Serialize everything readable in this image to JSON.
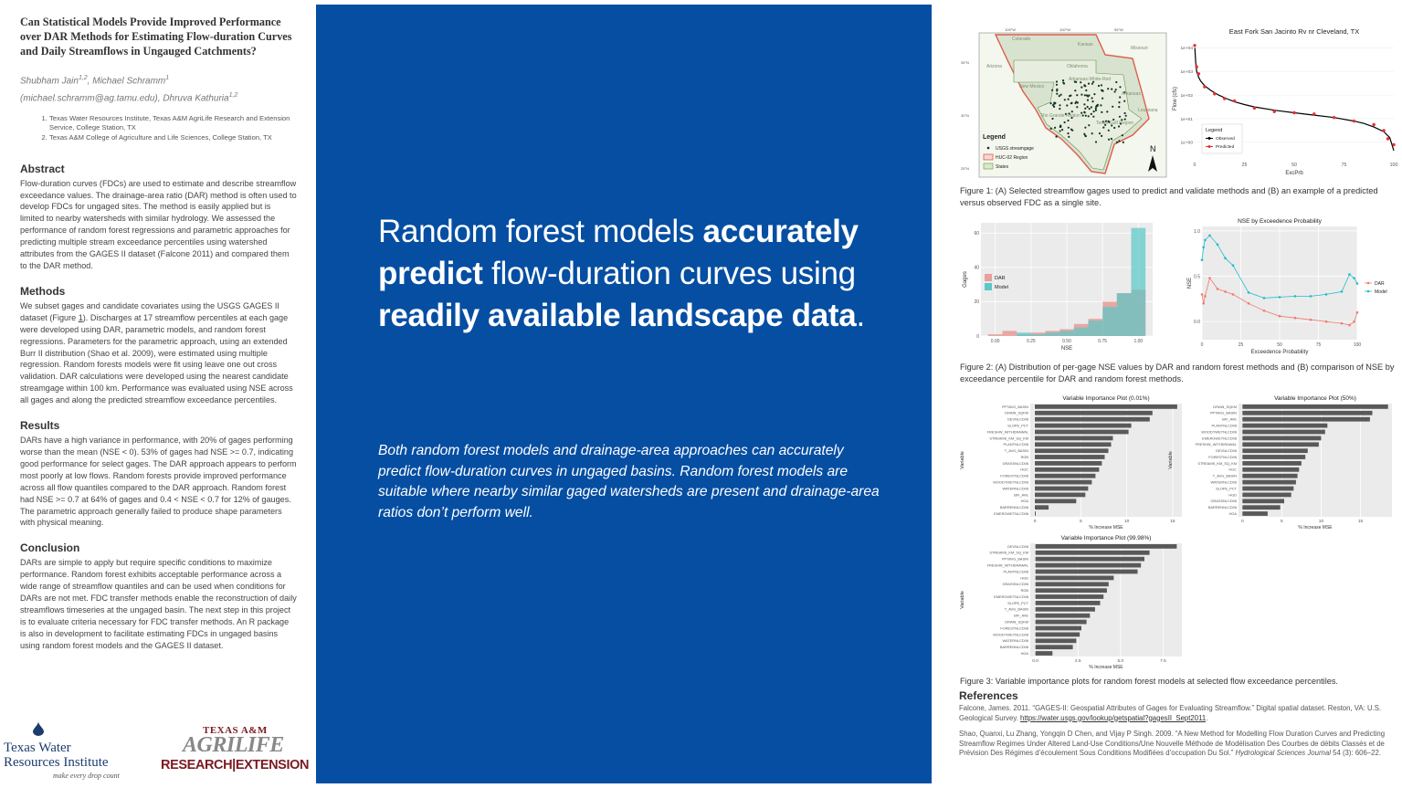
{
  "poster": {
    "title": "Can Statistical Models Provide Improved Performance over DAR Methods for Estimating Flow-duration Curves and Daily Streamflows in Ungauged Catchments?",
    "authors": [
      {
        "name": "Shubham Jain",
        "sup": "1,2",
        "sep": ", "
      },
      {
        "name": "Michael Schramm",
        "sup": "1",
        "sep": " "
      },
      {
        "name": "(michael.schramm@ag.tamu.edu), Dhruva Kathuria",
        "sup": "1,2",
        "sep": ""
      }
    ],
    "affiliations": [
      "Texas Water Resources Institute, Texas A&M AgriLife Research and Extension Service, College Station, TX",
      "Texas A&M College of Agriculture and Life Sciences, College Station, TX"
    ]
  },
  "sections": {
    "abstract": {
      "heading": "Abstract",
      "text": "Flow-duration curves (FDCs) are used to estimate and describe streamflow exceedance values. The drainage-area ratio (DAR) method is often used to develop FDCs for ungaged sites. The method is easily applied but is limited to nearby watersheds with similar hydrology. We assessed the performance of random forest regressions and parametric approaches for predicting multiple stream exceedance percentiles using watershed attributes from the GAGES II dataset (Falcone 2011) and compared them to the DAR method."
    },
    "methods": {
      "heading": "Methods",
      "text_a": "We subset gages and candidate covariates using the USGS GAGES II dataset (Figure ",
      "fig_link": "1",
      "text_b": "). Discharges at 17 streamflow percentiles at each gage were developed using DAR, parametric models, and random forest regressions. Parameters for the parametric approach, using an extended Burr II distribution (Shao et al. 2009), were estimated using multiple regression. Random forests models were fit using leave one out cross validation. DAR calculations were developed using the nearest candidate streamgage within 100 km. Performance was evaluated using NSE across all gages and along the predicted streamflow exceedance percentiles."
    },
    "results": {
      "heading": "Results",
      "text": "DARs have a high variance in performance, with 20% of gages performing worse than the mean (NSE < 0). 53% of gages had NSE >= 0.7, indicating good performance for select gages. The DAR approach appears to perform most poorly at low flows. Random forests provide improved performance across all flow quantiles compared to the DAR approach. Random forest had NSE >= 0.7 at 64% of gages and 0.4 < NSE < 0.7 for 12% of gauges. The parametric approach generally failed to produce shape parameters with physical meaning."
    },
    "conclusion": {
      "heading": "Conclusion",
      "text": "DARs are simple to apply but require specific conditions to maximize performance. Random forest exhibits acceptable performance across a wide range of streamflow quantiles and can be used when conditions for DARs are not met. FDC transfer methods enable the reconstruction of daily streamflows timeseries at the ungaged basin. The next step in this project is to evaluate criteria necessary for FDC transfer methods. An R package is also in development to facilitate estimating FDCs in ungaged basins using random forest models and the GAGES II dataset."
    }
  },
  "logos": {
    "twri_line1": "Texas Water",
    "twri_line2": "Resources Institute",
    "twri_tagline": "make every drop count",
    "agrilife_top": "TEXAS A&M",
    "agrilife_mid": "AGRILIFE",
    "agrilife_bottom": "RESEARCH|EXTENSION"
  },
  "center": {
    "headline": [
      {
        "t": "Random forest models ",
        "b": false
      },
      {
        "t": "accurately predict",
        "b": true
      },
      {
        "t": " flow-duration curves using ",
        "b": false
      },
      {
        "t": "readily available landscape data",
        "b": true
      },
      {
        "t": ".",
        "b": false
      }
    ],
    "summary": "Both random forest models and drainage-area approaches can accurately predict flow-duration curves in ungaged basins. Random forest models are suitable where nearby similar gaged watersheds are present and drainage-area ratios don’t perform well."
  },
  "figures": {
    "map": {
      "lon_labels": [
        "105°W",
        "100°W",
        "95°W"
      ],
      "lat_labels": [
        "35°N",
        "30°N",
        "25°N"
      ],
      "regions": [
        "Colorado",
        "Kansas",
        "Missouri",
        "Arizona",
        "New Mexico",
        "Oklahoma",
        "Arkansas",
        "Arkansas-White-Red",
        "Rio Grande Region",
        "Texas-Gulf Region",
        "Louisiana"
      ],
      "legend_title": "Legend",
      "legend_items": [
        "USGS streamgage",
        "HUC-02 Region",
        "States"
      ],
      "north": "N"
    },
    "caption1": "Figure 1: (A) Selected streamflow gages used to predict and validate methods and (B) an example of a predicted versus observed FDC as a single site.",
    "caption2": "Figure 2: (A) Distribution of per-gage NSE values by DAR and random forest methods and (B) comparison of NSE by exceedance percentile for DAR and random forest methods.",
    "caption3": "Figure 3: Variable importance plots for random forest models at selected flow exceedance percentiles."
  },
  "chart_data": [
    {
      "id": "fdc",
      "type": "line",
      "title": "East Fork San Jacinto Rv nr Cleveland, TX",
      "xlabel": "ExcPrb",
      "ylabel": "Flow (cfs)",
      "x_ticks": [
        0,
        25,
        50,
        75,
        100
      ],
      "y_ticks": [
        "1e+04",
        "1e+03",
        "1e+02",
        "1e+01",
        "1e+00"
      ],
      "y_log": true,
      "xlim": [
        0,
        100
      ],
      "ylim_log10": [
        -0.7,
        4.4
      ],
      "legend_title": "Legend",
      "series": [
        {
          "name": "Observed",
          "color": "#000000",
          "kind": "line",
          "x": [
            0.1,
            0.5,
            1,
            2,
            3,
            5,
            8,
            12,
            16,
            20,
            25,
            30,
            40,
            50,
            60,
            70,
            80,
            85,
            90,
            95,
            98,
            100
          ],
          "y": [
            4.0,
            3.4,
            3.0,
            2.75,
            2.6,
            2.4,
            2.2,
            2.0,
            1.85,
            1.72,
            1.6,
            1.5,
            1.36,
            1.25,
            1.15,
            1.05,
            0.9,
            0.8,
            0.65,
            0.45,
            0.2,
            -0.35
          ]
        },
        {
          "name": "Predicted",
          "color": "#e8302e",
          "kind": "point",
          "x": [
            0,
            1,
            2,
            5,
            10,
            15,
            20,
            30,
            40,
            50,
            60,
            70,
            80,
            90,
            95,
            97,
            100
          ],
          "y": [
            4.1,
            3.2,
            2.9,
            2.35,
            2.05,
            1.85,
            1.75,
            1.45,
            1.3,
            1.25,
            1.2,
            1.05,
            0.9,
            0.75,
            0.5,
            0.15,
            -0.1
          ]
        }
      ]
    },
    {
      "id": "nse_hist",
      "type": "bar",
      "xlabel": "NSE",
      "ylabel": "Gages",
      "x_ticks": [
        "0.00",
        "0.25",
        "0.50",
        "0.75",
        "1.00"
      ],
      "y_ticks": [
        0,
        20,
        40,
        60
      ],
      "xlim": [
        -0.1,
        1.1
      ],
      "ylim": [
        0,
        66
      ],
      "bin_width": 0.1,
      "bins": [
        0.0,
        0.1,
        0.2,
        0.3,
        0.4,
        0.5,
        0.6,
        0.7,
        0.8,
        0.9,
        1.0
      ],
      "series": [
        {
          "name": "DAR",
          "color": "#e8a09a",
          "values": [
            1,
            3,
            1,
            2,
            3,
            4,
            7,
            10,
            20,
            25,
            27
          ]
        },
        {
          "name": "Model",
          "color": "#5bc7c8",
          "values": [
            0,
            0,
            2,
            1,
            2,
            3,
            5,
            9,
            17,
            25,
            63
          ]
        }
      ]
    },
    {
      "id": "nse_exceed",
      "type": "line",
      "title": "NSE by Exceedence Probability",
      "xlabel": "Exceedence Probability",
      "ylabel": "NSE",
      "x_ticks": [
        0,
        25,
        50,
        75,
        100
      ],
      "y_ticks": [
        "1.0",
        "0.5",
        "0.0"
      ],
      "xlim": [
        0,
        100
      ],
      "ylim": [
        -0.2,
        1.05
      ],
      "series": [
        {
          "name": "DAR",
          "color": "#f07a6d",
          "x": [
            0,
            1,
            2,
            5,
            10,
            15,
            20,
            30,
            40,
            50,
            60,
            70,
            80,
            90,
            95,
            98,
            100
          ],
          "y": [
            0.3,
            0.2,
            0.28,
            0.48,
            0.36,
            0.33,
            0.3,
            0.2,
            0.12,
            0.06,
            0.04,
            0.02,
            0.0,
            -0.02,
            -0.04,
            0.0,
            0.1
          ]
        },
        {
          "name": "Model",
          "color": "#1fbccc",
          "x": [
            0,
            1,
            2,
            5,
            10,
            15,
            20,
            30,
            40,
            50,
            60,
            70,
            80,
            90,
            95,
            98,
            100
          ],
          "y": [
            0.68,
            0.82,
            0.9,
            0.95,
            0.85,
            0.7,
            0.62,
            0.32,
            0.26,
            0.27,
            0.28,
            0.28,
            0.3,
            0.33,
            0.52,
            0.48,
            0.42
          ]
        }
      ]
    },
    {
      "id": "vip_001",
      "type": "bar",
      "orientation": "horizontal",
      "title": "Variable Importance Plot (0.01%)",
      "xlabel": "% Increase MSE",
      "ylabel": "Variable",
      "x_ticks": [
        0,
        5,
        10,
        15
      ],
      "xlim": [
        -0.5,
        16
      ],
      "categories": [
        "PPTAVG_BASIN",
        "DRAIN_SQKM",
        "DEVNLCD06",
        "SLOPE_PCT",
        "FRESHW_WITHDRAWAL",
        "STREAMS_KM_SQ_KM",
        "PLANTNLCD06",
        "T_AVG_BASIN",
        "RGB",
        "GRASSNLCD06",
        "HGC",
        "FORESTNLCD06",
        "WOODYWETNLCD06",
        "WATERNLCD06",
        "BFI_AVE",
        "HGA",
        "BARRENNLCD06",
        "EMERGWETNLCD06"
      ],
      "values": [
        15.5,
        12.8,
        12.5,
        10.5,
        10.2,
        8.5,
        8.3,
        8.0,
        7.6,
        7.3,
        7.0,
        6.6,
        6.2,
        5.8,
        5.5,
        4.5,
        1.5,
        0.1
      ]
    },
    {
      "id": "vip_50",
      "type": "bar",
      "orientation": "horizontal",
      "title": "Variable Importance Plot (50%)",
      "xlabel": "% Increase MSE",
      "ylabel": "Variable",
      "x_ticks": [
        0,
        5,
        10,
        15
      ],
      "xlim": [
        -0.5,
        19
      ],
      "categories": [
        "DRAIN_SQKM",
        "PPTAVG_BASIN",
        "BFI_AVE",
        "PLANTNLCD06",
        "WOODYWETNLCD06",
        "EMERGWETNLCD06",
        "FRESHW_WITHDRAWAL",
        "DEVNLCD06",
        "FORESTNLCD06",
        "STREAMS_KM_SQ_KM",
        "HGC",
        "T_AVG_BASIN",
        "WATERNLCD06",
        "SLOPE_PCT",
        "HGD",
        "GRASSNLCD06",
        "BARRENNLCD06",
        "HGA"
      ],
      "values": [
        18.5,
        16.5,
        16.2,
        10.8,
        10.5,
        10.0,
        9.7,
        8.3,
        8.0,
        7.5,
        7.2,
        7.0,
        6.8,
        6.5,
        6.2,
        5.3,
        4.8,
        3.2
      ]
    },
    {
      "id": "vip_9998",
      "type": "bar",
      "orientation": "horizontal",
      "title": "Variable Importance Plot (99.98%)",
      "xlabel": "% Increase MSE",
      "ylabel": "Variable",
      "x_ticks": [
        "0.0",
        "2.5",
        "5.0",
        "7.5"
      ],
      "xlim": [
        -0.3,
        8.6
      ],
      "categories": [
        "DEVNLCD06",
        "STREAMS_KM_SQ_KM",
        "PPTAVG_BASIN",
        "FRESHW_WITHDRAWAL",
        "PLANTNLCD06",
        "HGD",
        "GRASSNLCD06",
        "RGB",
        "EMERGWETNLCD06",
        "SLOPE_PCT",
        "T_AVG_BASIN",
        "BFI_AVE",
        "DRAIN_SQKM",
        "FORESTNLCD06",
        "WOODYWETNLCD06",
        "WATERNLCD06",
        "BARRENNLCD06",
        "HGA"
      ],
      "values": [
        8.3,
        6.7,
        6.4,
        6.2,
        6.0,
        4.6,
        4.3,
        4.2,
        4.0,
        3.8,
        3.5,
        3.2,
        3.0,
        2.7,
        2.6,
        2.4,
        2.2,
        1.0
      ]
    }
  ],
  "references": {
    "heading": "References",
    "items": [
      {
        "text": "Falcone, James. 2011. “GAGES-II: Geospatial Attributes of Gages for Evaluating Streamflow.” Digital spatial dataset. Reston, VA: U.S. Geological Survey. ",
        "link": "https://water.usgs.gov/lookup/getspatial?gagesII_Sept2011",
        "tail": "."
      },
      {
        "text": "Shao, Quanxi, Lu Zhang, Yongqin D Chen, and Vijay P Singh. 2009. “A New Method for Modelling Flow Duration Curves and Predicting Streamflow Regimes Under Altered Land-Use Conditions/Une Nouvelle Méthode de Modélisation Des Courbes de débits Classés et de Prévision Des Régimes d’écoulement Sous Conditions Modifiées d’occupation Du Sol.” ",
        "journal": "Hydrological Sciences Journal",
        "tail": " 54 (3): 606–22."
      }
    ]
  }
}
